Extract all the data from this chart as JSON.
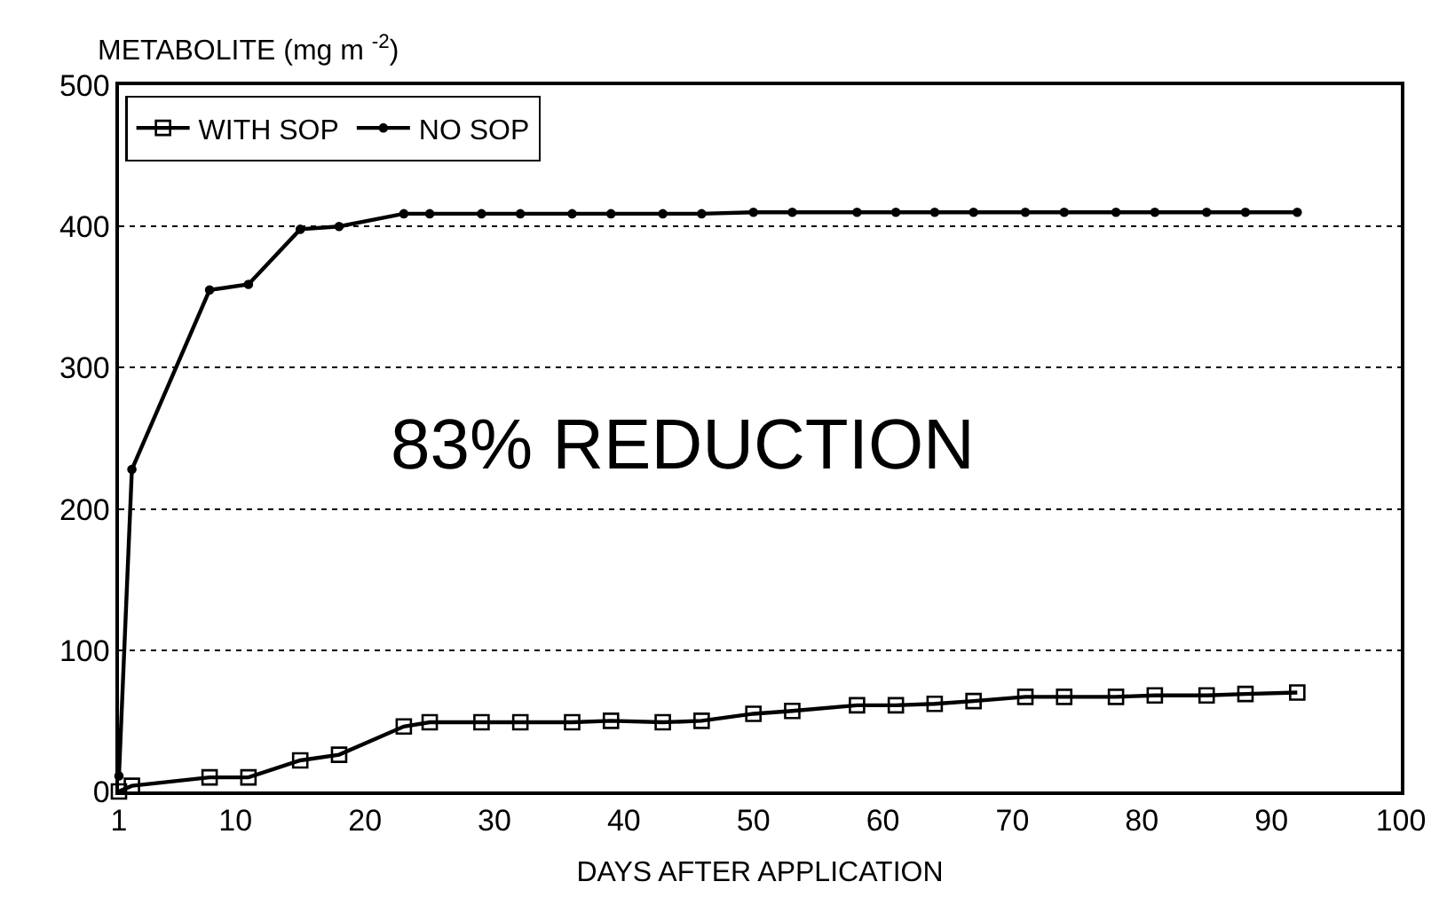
{
  "chart_data": {
    "type": "line",
    "ylabel": "METABOLITE (mg m $^{-2}$)",
    "xlabel": "DAYS AFTER APPLICATION",
    "x": [
      1,
      2,
      8,
      11,
      15,
      18,
      23,
      25,
      29,
      32,
      36,
      39,
      43,
      46,
      50,
      53,
      58,
      61,
      64,
      67,
      71,
      74,
      78,
      81,
      85,
      88,
      92
    ],
    "series": [
      {
        "name": "WITH SOP",
        "color": "#000000",
        "marker": "square",
        "values": [
          0,
          4,
          10,
          10,
          22,
          26,
          46,
          49,
          49,
          49,
          49,
          50,
          49,
          50,
          55,
          57,
          61,
          61,
          62,
          64,
          67,
          67,
          67,
          68,
          68,
          69,
          70
        ]
      },
      {
        "name": "NO SOP",
        "color": "#000000",
        "marker": "circle",
        "values": [
          11,
          228,
          355,
          359,
          398,
          400,
          409,
          409,
          409,
          409,
          409,
          409,
          409,
          409,
          410,
          410,
          410,
          410,
          410,
          410,
          410,
          410,
          410,
          410,
          410,
          410,
          410
        ]
      }
    ],
    "xlim": [
      1,
      100
    ],
    "xticks": [
      1,
      10,
      20,
      30,
      40,
      50,
      60,
      70,
      80,
      90,
      100
    ],
    "ylim": [
      0,
      500
    ],
    "yticks": [
      0,
      100,
      200,
      300,
      400,
      500
    ],
    "grid": "y",
    "legend": "top left",
    "line_style": "solid",
    "annotations": [
      "83% REDUCTION"
    ]
  }
}
